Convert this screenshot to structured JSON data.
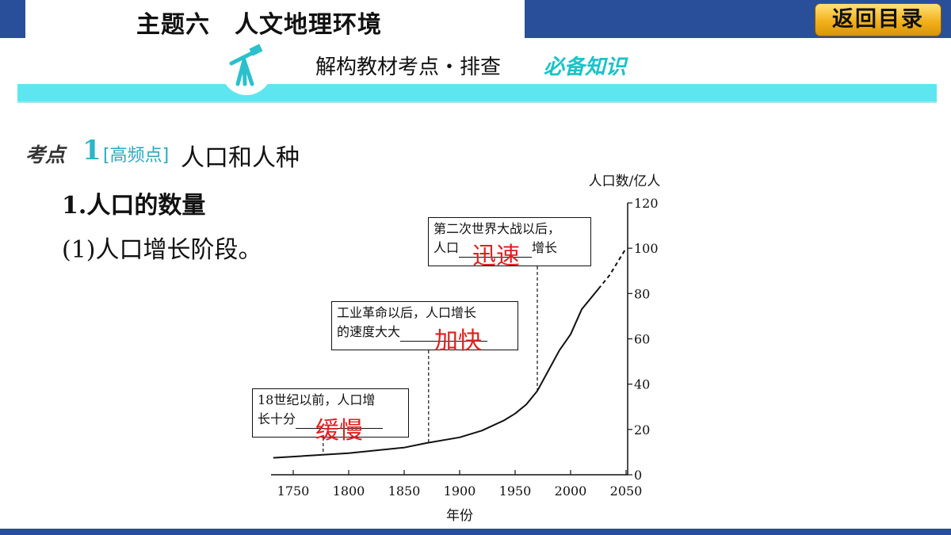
{
  "header": {
    "title": "主题六　人文地理环境",
    "back_button": "返回目录"
  },
  "section": {
    "subtitle": "解构教材考点・排查",
    "subtitle_accent": "必备知识"
  },
  "heading": {
    "label": "考点",
    "number": "1",
    "tag": "[高频点]",
    "title": "人口和人种",
    "h1": "1.人口的数量",
    "h2": "(1)人口增长阶段。"
  },
  "annotations": [
    {
      "text_line1": "18世纪以前，人口增",
      "text_line2": "长十分",
      "answer": "缓慢"
    },
    {
      "text_line1": "工业革命以后，人口增长",
      "text_line2": "的速度大大",
      "answer": "加快"
    },
    {
      "text_line1": "第二次世界大战以后，",
      "text_line2": "人口",
      "text_line2_suffix": "增长",
      "answer": "迅速"
    }
  ],
  "chart_data": {
    "type": "line",
    "xlabel": "年份",
    "ylabel": "人口数/亿人",
    "xlim": [
      1750,
      2050
    ],
    "ylim": [
      0,
      120
    ],
    "x_ticks": [
      "1750",
      "1800",
      "1850",
      "1900",
      "1950",
      "2000",
      "2050"
    ],
    "y_ticks": [
      "0",
      "20",
      "40",
      "60",
      "80",
      "100",
      "120"
    ],
    "series": [
      {
        "solid": true,
        "points": [
          [
            1732,
            7.5
          ],
          [
            1750,
            8
          ],
          [
            1800,
            9.5
          ],
          [
            1850,
            12
          ],
          [
            1870,
            14
          ],
          [
            1900,
            16.5
          ],
          [
            1920,
            19.5
          ],
          [
            1940,
            24
          ],
          [
            1950,
            27
          ],
          [
            1960,
            31
          ],
          [
            1970,
            37
          ],
          [
            1980,
            46
          ],
          [
            1990,
            55
          ],
          [
            2000,
            62
          ],
          [
            2010,
            73
          ],
          [
            2025,
            82
          ]
        ]
      },
      {
        "solid": false,
        "points": [
          [
            2025,
            82
          ],
          [
            2035,
            88
          ],
          [
            2050,
            100
          ]
        ]
      }
    ],
    "annotation_x": [
      1777,
      1872,
      1970
    ],
    "colors": {
      "line": "#111111",
      "answer": "#e02020"
    }
  }
}
